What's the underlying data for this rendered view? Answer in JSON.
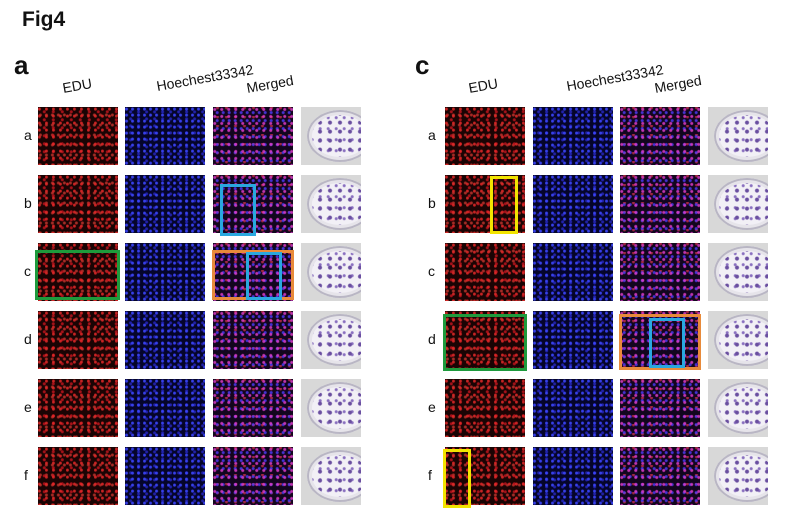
{
  "figure": {
    "title": "Fig4"
  },
  "panels": [
    {
      "letter": "a",
      "columns": [
        "EDU",
        "Hoechest33342",
        "Merged"
      ],
      "rows": [
        "a",
        "b",
        "c",
        "d",
        "e",
        "f"
      ]
    },
    {
      "letter": "c",
      "columns": [
        "EDU",
        "Hoechest33342",
        "Merged"
      ],
      "rows": [
        "a",
        "b",
        "c",
        "d",
        "e",
        "f"
      ]
    }
  ],
  "colors": {
    "green_box": "#1e9a3c",
    "blue_box": "#29a8df",
    "orange_box": "#e88a3a",
    "yellow_box": "#f2e400"
  }
}
